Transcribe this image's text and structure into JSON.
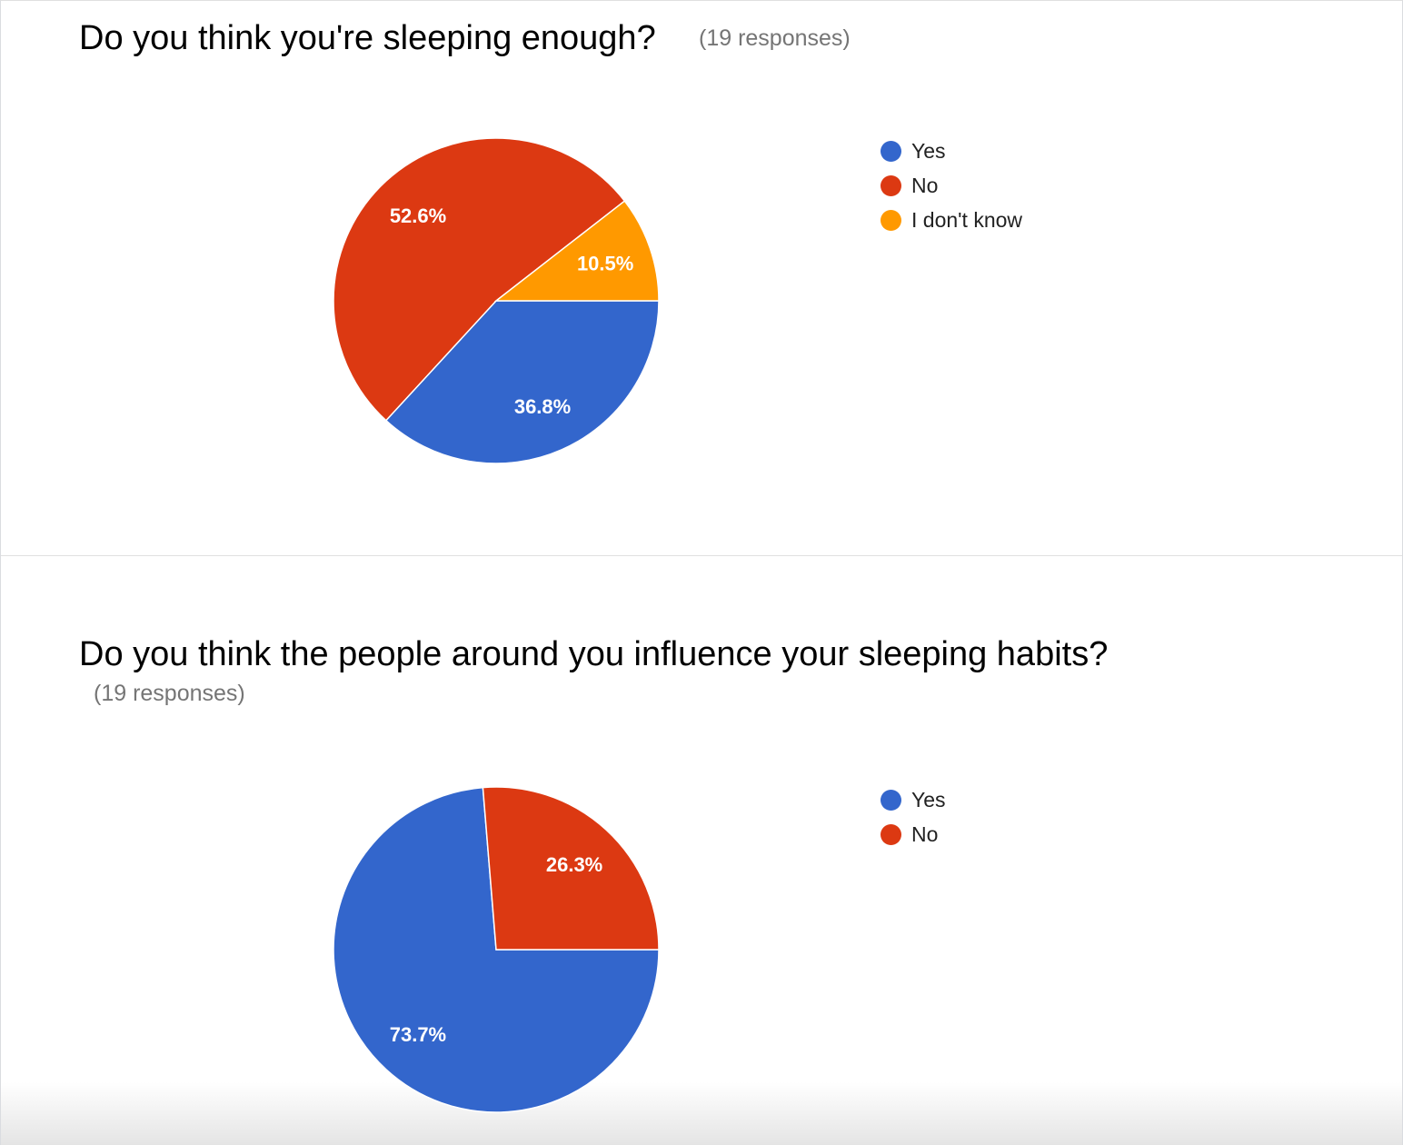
{
  "colors": {
    "yes": "#3366cc",
    "no": "#dc3912",
    "dont_know": "#ff9900",
    "slice_label": "#ffffff"
  },
  "chart_data": [
    {
      "type": "pie",
      "title": "Do you think you're sleeping enough?",
      "subtitle": "(19 responses)",
      "legend_position": "right",
      "slices": [
        {
          "label": "Yes",
          "value": 36.8,
          "display": "36.8%",
          "color": "#3366cc"
        },
        {
          "label": "No",
          "value": 52.6,
          "display": "52.6%",
          "color": "#dc3912"
        },
        {
          "label": "I don't know",
          "value": 10.5,
          "display": "10.5%",
          "color": "#ff9900"
        }
      ]
    },
    {
      "type": "pie",
      "title": "Do you think the people around you influence your sleeping habits?",
      "subtitle": "(19 responses)",
      "legend_position": "right",
      "slices": [
        {
          "label": "Yes",
          "value": 73.7,
          "display": "73.7%",
          "color": "#3366cc"
        },
        {
          "label": "No",
          "value": 26.3,
          "display": "26.3%",
          "color": "#dc3912"
        }
      ]
    }
  ]
}
